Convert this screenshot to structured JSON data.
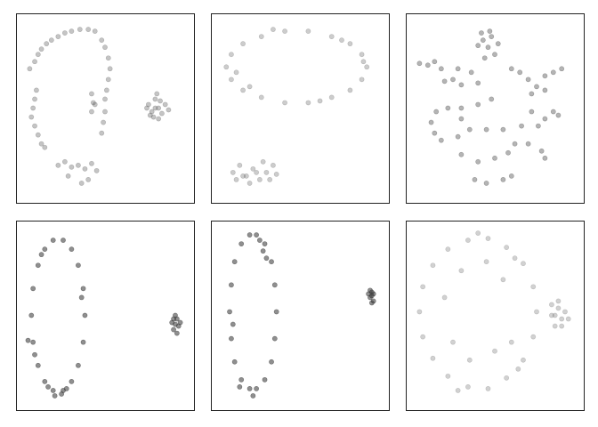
{
  "chart_data": [
    {
      "type": "scatter",
      "color": "#555555",
      "opacity": 0.35,
      "xlim": [
        0,
        100
      ],
      "ylim": [
        0,
        100
      ],
      "x": [
        5,
        8,
        10,
        12,
        15,
        18,
        9,
        8,
        7,
        6,
        8,
        10,
        12,
        14,
        22,
        26,
        30,
        35,
        40,
        44,
        48,
        50,
        52,
        53,
        52,
        51,
        50,
        50,
        49,
        48,
        42,
        43,
        42,
        44,
        22,
        26,
        30,
        34,
        38,
        42,
        45,
        40,
        36,
        28,
        76,
        78,
        80,
        82,
        84,
        79,
        86,
        81,
        77,
        83,
        80,
        88,
        75,
        82
      ],
      "y": [
        72,
        76,
        80,
        83,
        86,
        88,
        60,
        55,
        50,
        45,
        40,
        35,
        30,
        28,
        90,
        92,
        93,
        94,
        94,
        93,
        88,
        84,
        78,
        72,
        66,
        60,
        55,
        48,
        42,
        36,
        58,
        53,
        48,
        52,
        18,
        20,
        17,
        18,
        16,
        19,
        15,
        10,
        8,
        12,
        52,
        48,
        55,
        50,
        47,
        45,
        52,
        58,
        46,
        54,
        50,
        49,
        50,
        44
      ]
    },
    {
      "type": "scatter",
      "color": "#555555",
      "opacity": 0.3,
      "xlim": [
        0,
        100
      ],
      "ylim": [
        0,
        100
      ],
      "x": [
        90,
        87,
        80,
        69,
        55,
        41,
        27,
        16,
        9,
        6,
        9,
        16,
        27,
        41,
        55,
        69,
        80,
        87,
        88,
        12,
        34,
        62,
        75,
        20,
        10,
        14,
        18,
        22,
        26,
        30,
        34,
        28,
        20,
        16,
        24,
        32,
        12,
        36
      ],
      "y": [
        73,
        80,
        86,
        90,
        93,
        93,
        90,
        86,
        80,
        73,
        66,
        60,
        56,
        53,
        53,
        56,
        60,
        66,
        76,
        70,
        94,
        54,
        88,
        62,
        14,
        18,
        12,
        16,
        10,
        14,
        18,
        20,
        8,
        12,
        14,
        10,
        10,
        13
      ]
    },
    {
      "type": "scatter",
      "color": "#444444",
      "opacity": 0.4,
      "xlim": [
        0,
        100
      ],
      "ylim": [
        0,
        100
      ],
      "x": [
        40,
        43,
        46,
        48,
        50,
        44,
        52,
        47,
        42,
        5,
        10,
        14,
        18,
        20,
        25,
        30,
        28,
        36,
        40,
        60,
        65,
        70,
        75,
        80,
        85,
        90,
        72,
        80,
        15,
        22,
        30,
        40,
        48,
        12,
        14,
        18,
        28,
        30,
        40,
        50,
        58,
        62,
        70,
        76,
        80,
        85,
        72,
        66,
        55,
        45,
        35,
        30,
        38,
        45,
        55,
        60,
        78,
        80,
        88
      ],
      "y": [
        85,
        88,
        84,
        90,
        80,
        78,
        86,
        93,
        92,
        75,
        74,
        76,
        72,
        65,
        66,
        63,
        72,
        70,
        64,
        72,
        70,
        66,
        62,
        68,
        70,
        72,
        58,
        60,
        48,
        50,
        50,
        52,
        55,
        42,
        36,
        32,
        34,
        24,
        20,
        22,
        25,
        30,
        30,
        40,
        44,
        48,
        48,
        40,
        38,
        38,
        38,
        44,
        10,
        8,
        10,
        12,
        26,
        22,
        46
      ]
    },
    {
      "type": "scatter",
      "color": "#333333",
      "opacity": 0.55,
      "xlim": [
        0,
        100
      ],
      "ylim": [
        0,
        100
      ],
      "x": [
        38,
        37,
        34,
        30,
        25,
        19,
        14,
        10,
        7,
        6,
        7,
        10,
        14,
        19,
        25,
        30,
        34,
        37,
        20,
        24,
        27,
        16,
        8,
        36,
        12,
        4,
        91,
        92,
        93,
        94,
        92,
        90,
        93,
        95,
        91
      ],
      "y": [
        50,
        65,
        78,
        87,
        92,
        92,
        87,
        78,
        65,
        50,
        35,
        22,
        13,
        8,
        8,
        13,
        22,
        35,
        5,
        6,
        9,
        10,
        28,
        60,
        84,
        36,
        42,
        45,
        48,
        44,
        50,
        46,
        40,
        46,
        48
      ]
    },
    {
      "type": "scatter",
      "color": "#333333",
      "opacity": 0.55,
      "xlim": [
        0,
        100
      ],
      "ylim": [
        0,
        100
      ],
      "x": [
        36,
        35,
        33,
        29,
        24,
        20,
        15,
        11,
        9,
        8,
        9,
        11,
        15,
        20,
        24,
        29,
        33,
        35,
        26,
        28,
        30,
        14,
        22,
        10,
        92,
        93,
        94,
        93,
        92,
        94,
        93,
        91
      ],
      "y": [
        52,
        67,
        80,
        90,
        95,
        95,
        90,
        80,
        67,
        52,
        37,
        24,
        14,
        9,
        9,
        14,
        24,
        37,
        92,
        86,
        82,
        10,
        5,
        45,
        60,
        63,
        58,
        61,
        64,
        62,
        57,
        62
      ]
    },
    {
      "type": "scatter",
      "color": "#666666",
      "opacity": 0.3,
      "xlim": [
        0,
        100
      ],
      "ylim": [
        0,
        100
      ],
      "x": [
        75,
        73,
        67,
        57,
        46,
        34,
        22,
        13,
        7,
        5,
        7,
        13,
        22,
        34,
        46,
        57,
        67,
        73,
        30,
        45,
        55,
        25,
        35,
        60,
        20,
        50,
        62,
        40,
        28,
        64,
        84,
        88,
        90,
        86,
        92,
        88,
        84,
        90,
        86,
        94
      ],
      "y": [
        52,
        66,
        79,
        88,
        93,
        92,
        87,
        78,
        66,
        52,
        38,
        26,
        16,
        10,
        9,
        15,
        25,
        38,
        75,
        80,
        70,
        35,
        25,
        35,
        60,
        30,
        82,
        96,
        8,
        20,
        50,
        54,
        48,
        44,
        52,
        58,
        56,
        44,
        50,
        48
      ]
    }
  ]
}
